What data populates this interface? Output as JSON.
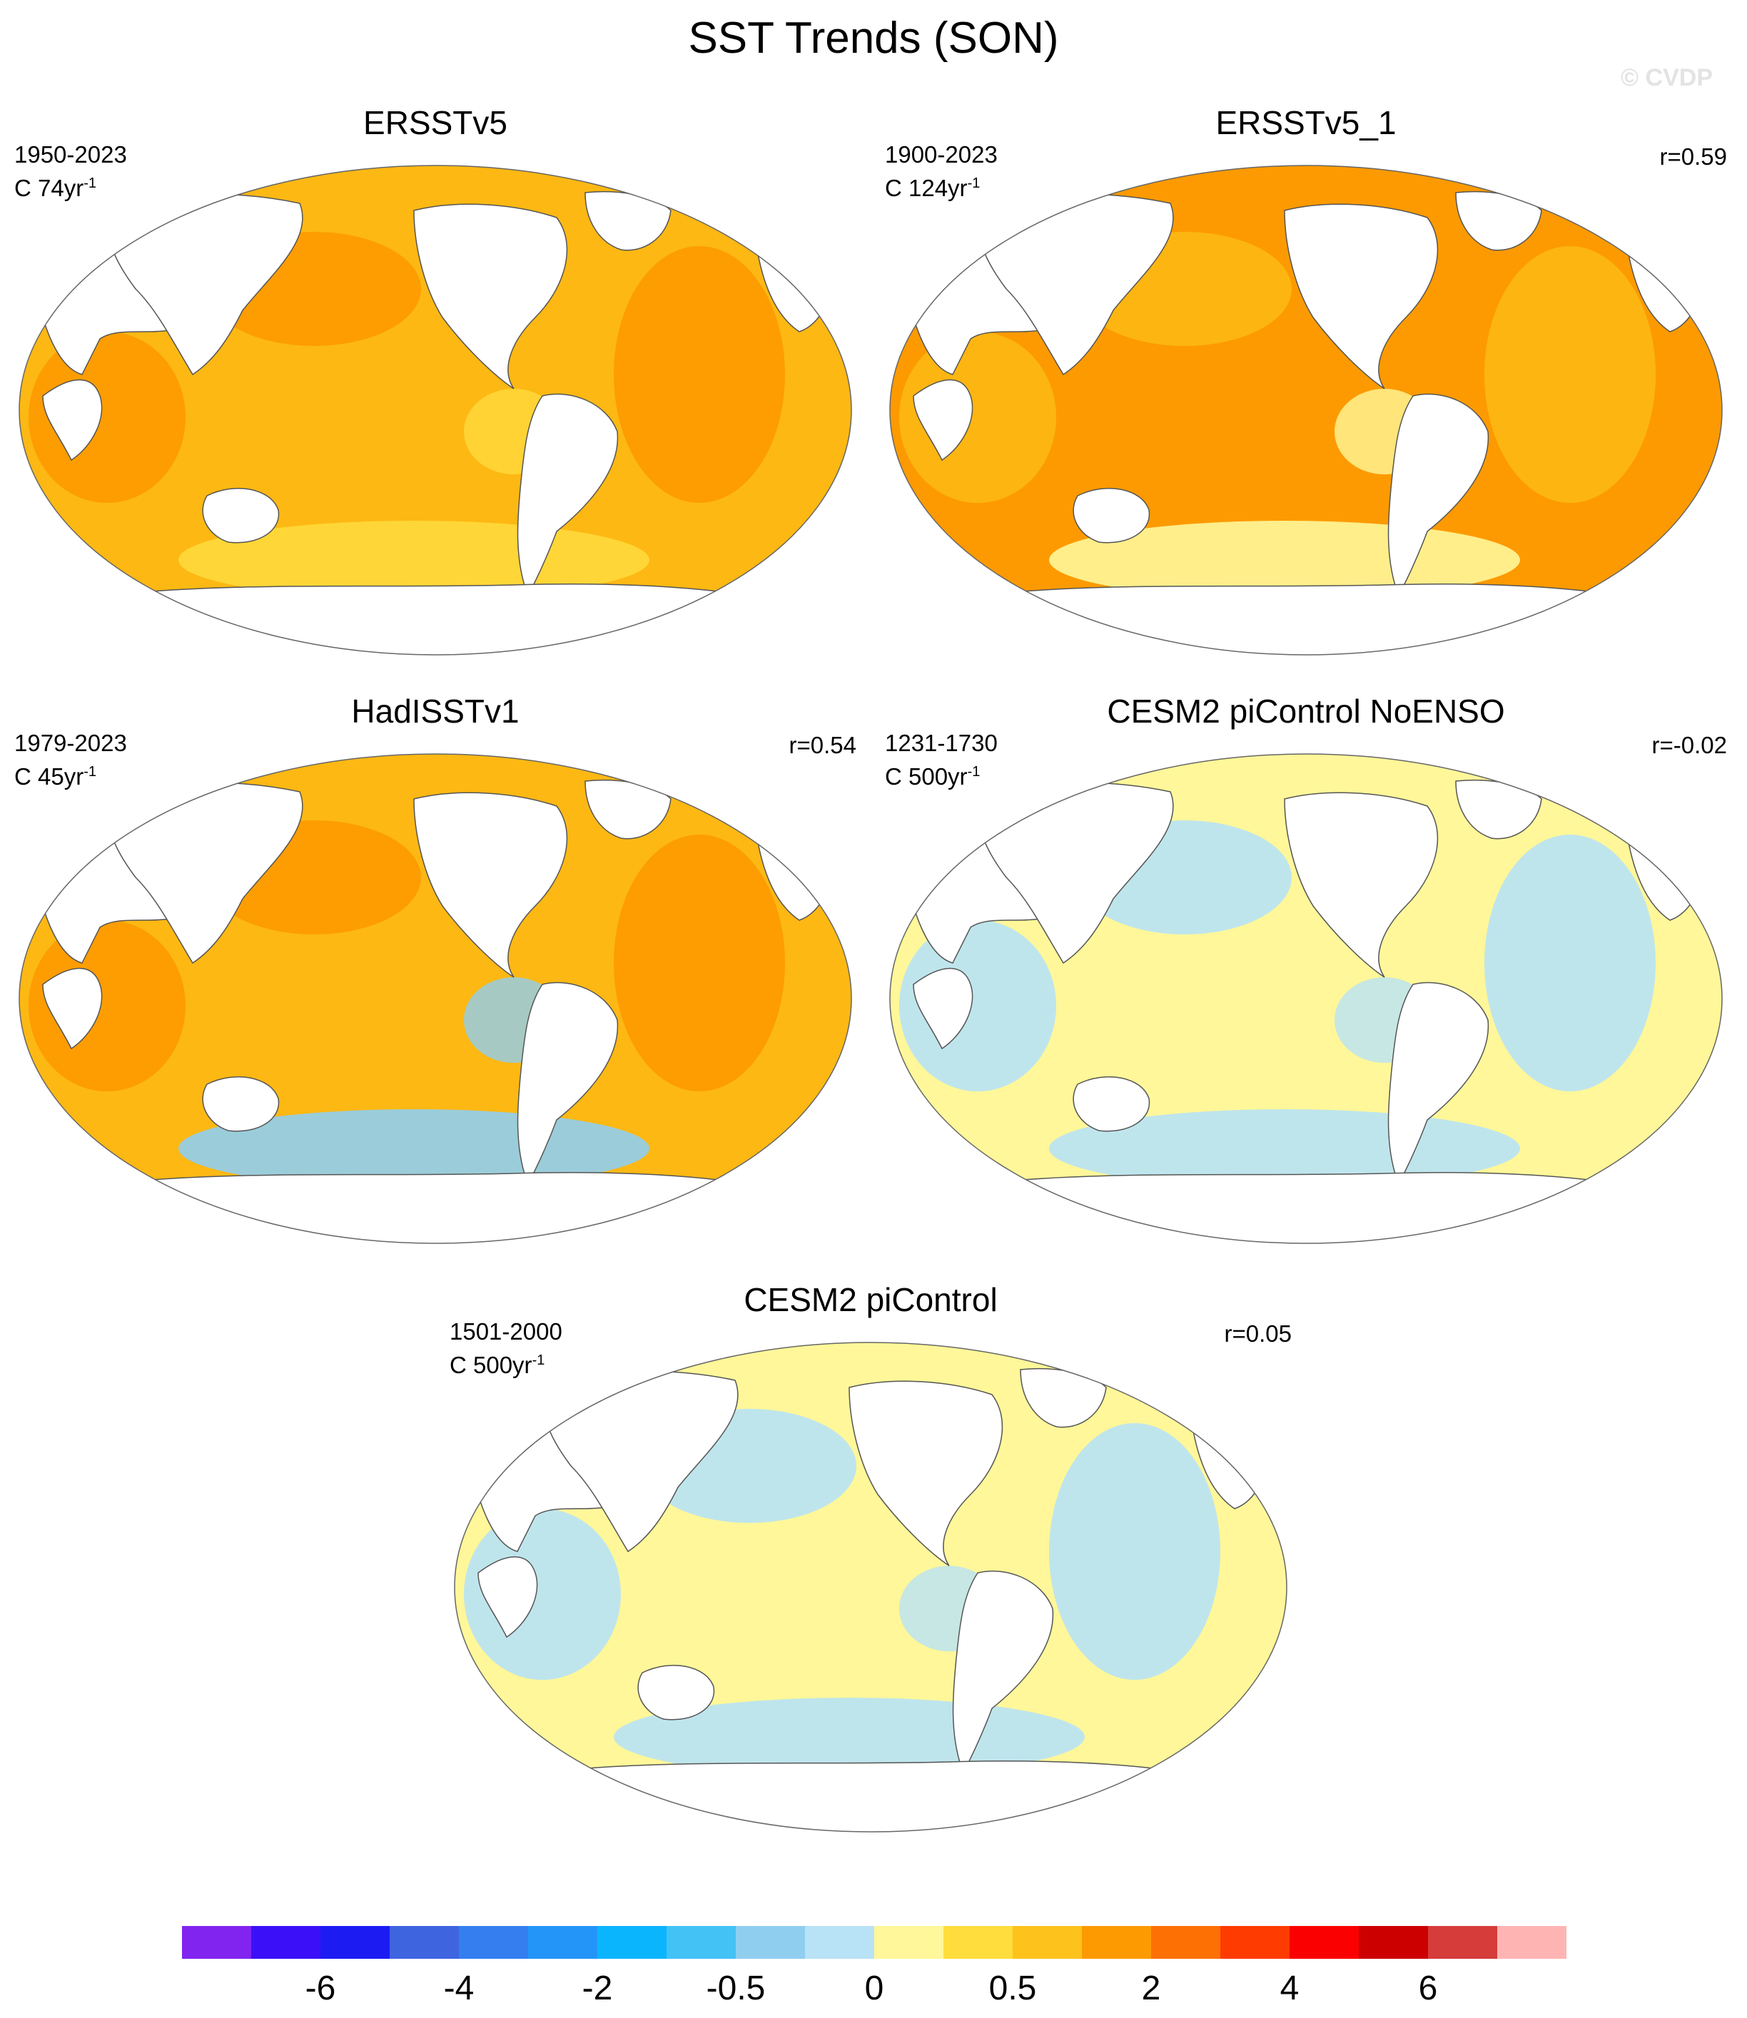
{
  "title": "SST Trends (SON)",
  "watermark": "© CVDP",
  "panels": [
    {
      "name": "ERSSTv5",
      "period": "1950-2023",
      "trend_prefix": "C 74yr",
      "trend_exp": "-1",
      "corr": "",
      "ocean_color": "#fdb813",
      "accent_color": "#fd9a01",
      "cool_color": "#ffd93c"
    },
    {
      "name": "ERSSTv5_1",
      "period": "1900-2023",
      "trend_prefix": "C 124yr",
      "trend_exp": "-1",
      "corr": "r=0.59",
      "ocean_color": "#fd9a01",
      "accent_color": "#fdb813",
      "cool_color": "#fff799"
    },
    {
      "name": "HadISSTv1",
      "period": "1979-2023",
      "trend_prefix": "C 45yr",
      "trend_exp": "-1",
      "corr": "r=0.54",
      "ocean_color": "#fdb813",
      "accent_color": "#fd9a01",
      "cool_color": "#90cef0"
    },
    {
      "name": "CESM2 piControl NoENSO",
      "period": "1231-1730",
      "trend_prefix": "C 500yr",
      "trend_exp": "-1",
      "corr": "r=-0.02",
      "ocean_color": "#fff799",
      "accent_color": "#b8e2f5",
      "cool_color": "#b8e2f5"
    },
    {
      "name": "CESM2 piControl",
      "period": "1501-2000",
      "trend_prefix": "C 500yr",
      "trend_exp": "-1",
      "corr": "r=0.05",
      "ocean_color": "#fff799",
      "accent_color": "#b8e2f5",
      "cool_color": "#b8e2f5"
    }
  ],
  "colorbar": {
    "colors": [
      "#8224ef",
      "#3b10f8",
      "#1c1cf2",
      "#3f64e0",
      "#347ef0",
      "#2495f8",
      "#0bb5fd",
      "#43c2f6",
      "#90cef0",
      "#b8e2f5",
      "#fff799",
      "#ffdd3c",
      "#fdc21c",
      "#fd9a01",
      "#fd7004",
      "#fe3b01",
      "#fb0000",
      "#cd0000",
      "#d53c3a",
      "#ffb4b4"
    ],
    "labels": [
      "-6",
      "-4",
      "-2",
      "-0.5",
      "0",
      "0.5",
      "2",
      "4",
      "6"
    ]
  }
}
